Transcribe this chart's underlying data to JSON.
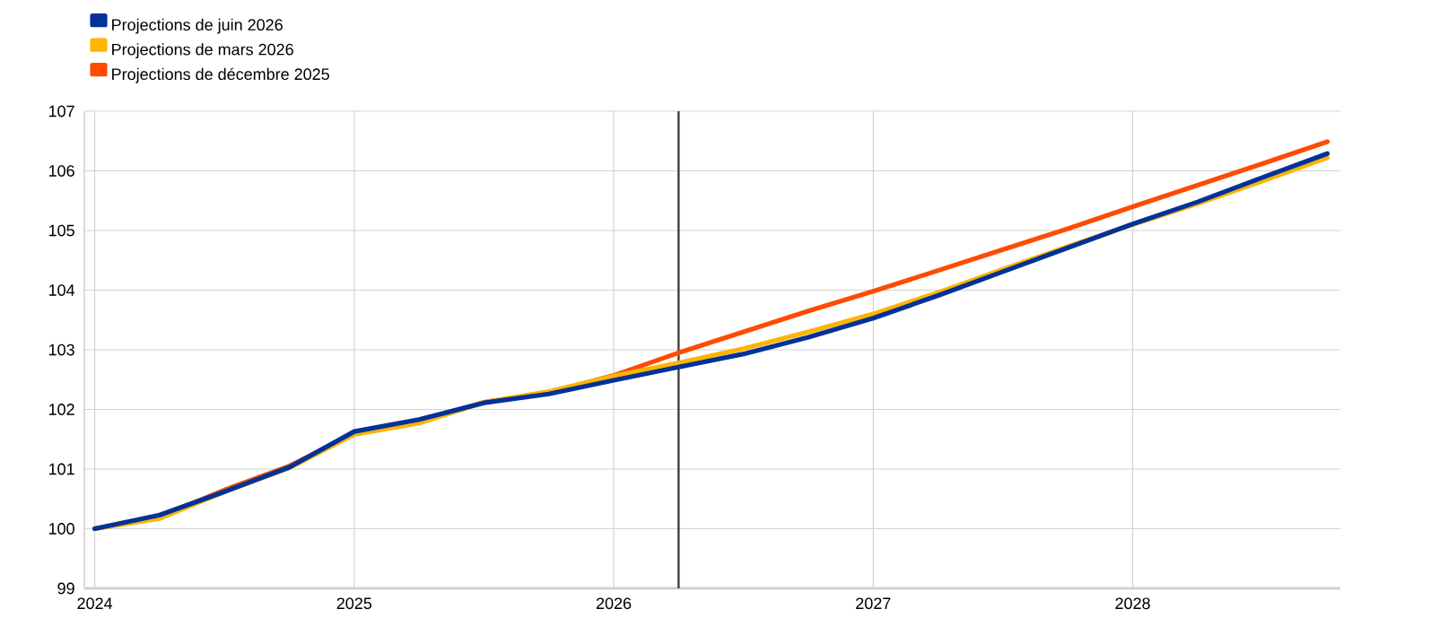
{
  "chart_data": {
    "type": "line",
    "x": [
      2024,
      2024.25,
      2024.5,
      2024.75,
      2025,
      2025.25,
      2025.5,
      2025.75,
      2026,
      2026.25,
      2026.5,
      2026.75,
      2027,
      2027.25,
      2027.5,
      2027.75,
      2028,
      2028.25,
      2028.5,
      2028.75
    ],
    "series": [
      {
        "name": "Projections de juin 2026",
        "color": "#003299",
        "values": [
          100.0,
          100.23,
          100.62,
          101.03,
          101.63,
          101.83,
          102.11,
          102.26,
          102.49,
          102.71,
          102.93,
          103.21,
          103.53,
          103.91,
          104.31,
          104.71,
          105.11,
          105.48,
          105.89,
          106.29
        ]
      },
      {
        "name": "Projections de mars 2026",
        "color": "#ffb400",
        "values": [
          100.0,
          100.17,
          100.62,
          101.02,
          101.58,
          101.77,
          102.12,
          102.3,
          102.56,
          102.78,
          103.02,
          103.3,
          103.6,
          103.96,
          104.35,
          104.73,
          105.1,
          105.45,
          105.83,
          106.22
        ]
      },
      {
        "name": "Projections de décembre 2025",
        "color": "#ff4b00",
        "values": [
          100.0,
          100.2,
          100.65,
          101.05,
          101.6,
          101.8,
          102.12,
          102.28,
          102.57,
          102.95,
          103.3,
          103.65,
          103.98,
          104.33,
          104.68,
          105.03,
          105.4,
          105.76,
          106.12,
          106.49
        ]
      }
    ],
    "xlim": [
      2023.96,
      2028.8
    ],
    "ylim": [
      99,
      107
    ],
    "xticks": [
      2024,
      2025,
      2026,
      2027,
      2028
    ],
    "yticks": [
      99,
      100,
      101,
      102,
      103,
      104,
      105,
      106,
      107
    ],
    "ref_lines": [
      {
        "axis": "x",
        "value": 2026.25,
        "color": "#404040"
      }
    ],
    "grid": true,
    "legend": "top left",
    "marker": "none",
    "line_style": "solid"
  }
}
